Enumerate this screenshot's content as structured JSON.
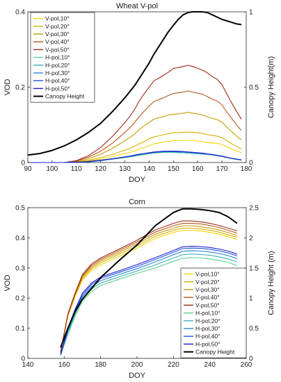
{
  "chart_data": [
    {
      "type": "line",
      "title": "Wheat V-pol",
      "xlabel": "DOY",
      "ylabel": "VOD",
      "y2label": "Canopy Height(m)",
      "xlim": [
        90,
        180
      ],
      "ylim": [
        0,
        0.4
      ],
      "y2lim": [
        0,
        1
      ],
      "xticks": [
        90,
        100,
        110,
        120,
        130,
        140,
        150,
        160,
        170,
        180
      ],
      "yticks": [
        0,
        0.2,
        0.4
      ],
      "y2ticks": [
        0,
        0.5,
        1
      ],
      "legend_position": "top-left",
      "grid": false,
      "x": [
        90,
        95,
        100,
        105,
        110,
        115,
        120,
        125,
        130,
        132,
        134,
        136,
        138,
        140,
        142,
        144,
        146,
        148,
        150,
        152,
        154,
        156,
        158,
        160,
        162,
        164,
        166,
        168,
        170,
        172,
        174,
        176,
        178
      ],
      "series": [
        {
          "name": "V-pol,10°",
          "color": "#f4d400",
          "axis": "left",
          "values": [
            0,
            0,
            0,
            0,
            0.001,
            0.004,
            0.009,
            0.016,
            0.024,
            0.027,
            0.031,
            0.036,
            0.04,
            0.045,
            0.05,
            0.052,
            0.054,
            0.056,
            0.058,
            0.058,
            0.059,
            0.059,
            0.058,
            0.057,
            0.055,
            0.053,
            0.052,
            0.051,
            0.048,
            0.042,
            0.036,
            0.031,
            0.026
          ]
        },
        {
          "name": "V-pol,20°",
          "color": "#d6ad00",
          "axis": "left",
          "values": [
            0,
            0,
            0,
            0,
            0.002,
            0.006,
            0.013,
            0.022,
            0.033,
            0.037,
            0.043,
            0.05,
            0.056,
            0.063,
            0.068,
            0.071,
            0.074,
            0.077,
            0.079,
            0.079,
            0.08,
            0.081,
            0.08,
            0.079,
            0.077,
            0.074,
            0.072,
            0.07,
            0.066,
            0.058,
            0.05,
            0.043,
            0.036
          ]
        },
        {
          "name": "V-pol,30°",
          "color": "#c49a00",
          "axis": "left",
          "values": [
            0,
            0,
            0,
            0,
            0.003,
            0.01,
            0.022,
            0.038,
            0.058,
            0.066,
            0.076,
            0.088,
            0.098,
            0.106,
            0.115,
            0.119,
            0.122,
            0.126,
            0.128,
            0.129,
            0.131,
            0.133,
            0.131,
            0.129,
            0.126,
            0.121,
            0.117,
            0.114,
            0.107,
            0.094,
            0.082,
            0.07,
            0.06
          ]
        },
        {
          "name": "V-pol,40°",
          "color": "#b8561c",
          "axis": "left",
          "values": [
            0,
            0,
            0,
            0,
            0.004,
            0.014,
            0.03,
            0.052,
            0.08,
            0.092,
            0.106,
            0.123,
            0.137,
            0.15,
            0.162,
            0.167,
            0.172,
            0.178,
            0.183,
            0.185,
            0.187,
            0.19,
            0.187,
            0.184,
            0.181,
            0.175,
            0.168,
            0.163,
            0.153,
            0.134,
            0.117,
            0.1,
            0.085
          ]
        },
        {
          "name": "V-pol,50°",
          "color": "#9c2a14",
          "axis": "left",
          "values": [
            0,
            0,
            0,
            0,
            0.005,
            0.018,
            0.04,
            0.07,
            0.106,
            0.122,
            0.141,
            0.164,
            0.183,
            0.2,
            0.217,
            0.224,
            0.232,
            0.24,
            0.25,
            0.252,
            0.255,
            0.258,
            0.255,
            0.25,
            0.245,
            0.238,
            0.228,
            0.221,
            0.207,
            0.182,
            0.158,
            0.136,
            0.115
          ]
        },
        {
          "name": "H-pol,10°",
          "color": "#5ccf8c",
          "axis": "left",
          "values": [
            0,
            0,
            0,
            0,
            0.001,
            0.002,
            0.005,
            0.009,
            0.013,
            0.015,
            0.017,
            0.019,
            0.021,
            0.023,
            0.025,
            0.026,
            0.027,
            0.027,
            0.027,
            0.026,
            0.026,
            0.025,
            0.024,
            0.023,
            0.022,
            0.021,
            0.02,
            0.018,
            0.016,
            0.013,
            0.01,
            0.008,
            0.006
          ]
        },
        {
          "name": "H-pol,20°",
          "color": "#3bb3b8",
          "axis": "left",
          "values": [
            0,
            0,
            0,
            0,
            0.001,
            0.002,
            0.005,
            0.009,
            0.014,
            0.016,
            0.018,
            0.02,
            0.022,
            0.024,
            0.026,
            0.027,
            0.028,
            0.028,
            0.028,
            0.027,
            0.027,
            0.026,
            0.025,
            0.024,
            0.023,
            0.022,
            0.02,
            0.018,
            0.016,
            0.013,
            0.011,
            0.009,
            0.007
          ]
        },
        {
          "name": "H-pol,30°",
          "color": "#2a86d6",
          "axis": "left",
          "values": [
            0,
            0,
            0,
            0,
            0.001,
            0.002,
            0.005,
            0.01,
            0.014,
            0.016,
            0.019,
            0.021,
            0.023,
            0.025,
            0.027,
            0.028,
            0.029,
            0.029,
            0.029,
            0.028,
            0.028,
            0.027,
            0.026,
            0.025,
            0.024,
            0.022,
            0.021,
            0.019,
            0.017,
            0.014,
            0.011,
            0.009,
            0.007
          ]
        },
        {
          "name": "H-pol,40°",
          "color": "#1f52d8",
          "axis": "left",
          "values": [
            0,
            0,
            0,
            0,
            0.001,
            0.002,
            0.006,
            0.01,
            0.015,
            0.017,
            0.019,
            0.022,
            0.024,
            0.026,
            0.027,
            0.028,
            0.029,
            0.03,
            0.03,
            0.029,
            0.029,
            0.028,
            0.027,
            0.026,
            0.024,
            0.023,
            0.021,
            0.019,
            0.017,
            0.014,
            0.011,
            0.009,
            0.007
          ]
        },
        {
          "name": "H-pol,50°",
          "color": "#1a1ad0",
          "axis": "left",
          "values": [
            0,
            0,
            0,
            0,
            0.001,
            0.003,
            0.006,
            0.01,
            0.015,
            0.017,
            0.02,
            0.022,
            0.024,
            0.026,
            0.028,
            0.029,
            0.03,
            0.03,
            0.03,
            0.03,
            0.029,
            0.028,
            0.027,
            0.026,
            0.025,
            0.023,
            0.021,
            0.019,
            0.017,
            0.014,
            0.011,
            0.009,
            0.007
          ]
        },
        {
          "name": "Canopy Height",
          "color": "#000000",
          "axis": "right",
          "values": [
            0.05,
            0.06,
            0.08,
            0.11,
            0.15,
            0.2,
            0.26,
            0.34,
            0.43,
            0.47,
            0.51,
            0.56,
            0.61,
            0.66,
            0.72,
            0.77,
            0.82,
            0.87,
            0.91,
            0.95,
            0.98,
            0.995,
            1.0,
            1.0,
            1.0,
            0.995,
            0.98,
            0.965,
            0.95,
            0.94,
            0.93,
            0.92,
            0.915
          ]
        }
      ]
    },
    {
      "type": "line",
      "title": "Corn",
      "xlabel": "DOY",
      "ylabel": "VOD",
      "y2label": "Canopy Height (m)",
      "xlim": [
        140,
        260
      ],
      "ylim": [
        0,
        0.5
      ],
      "y2lim": [
        0,
        2.5
      ],
      "xticks": [
        140,
        160,
        180,
        200,
        220,
        240,
        260
      ],
      "yticks": [
        0,
        0.1,
        0.2,
        0.3,
        0.4,
        0.5
      ],
      "y2ticks": [
        0,
        0.5,
        1,
        1.5,
        2,
        2.5
      ],
      "legend_position": "bottom-right",
      "grid": false,
      "x": [
        158,
        162,
        166,
        170,
        175,
        180,
        190,
        200,
        210,
        220,
        225,
        230,
        235,
        240,
        245,
        250,
        255
      ],
      "series": [
        {
          "name": "V-pol,10°",
          "color": "#f4d400",
          "axis": "left",
          "values": [
            0.02,
            0.14,
            0.205,
            0.26,
            0.292,
            0.31,
            0.338,
            0.366,
            0.398,
            0.418,
            0.425,
            0.425,
            0.423,
            0.418,
            0.412,
            0.404,
            0.395
          ]
        },
        {
          "name": "V-pol,20°",
          "color": "#d6ad00",
          "axis": "left",
          "values": [
            0.02,
            0.142,
            0.208,
            0.265,
            0.298,
            0.317,
            0.345,
            0.373,
            0.405,
            0.425,
            0.432,
            0.432,
            0.43,
            0.425,
            0.419,
            0.41,
            0.402
          ]
        },
        {
          "name": "V-pol,30°",
          "color": "#c49a00",
          "axis": "left",
          "values": [
            0.02,
            0.144,
            0.211,
            0.27,
            0.303,
            0.323,
            0.351,
            0.38,
            0.412,
            0.432,
            0.44,
            0.44,
            0.437,
            0.432,
            0.426,
            0.417,
            0.408
          ]
        },
        {
          "name": "V-pol,40°",
          "color": "#b8561c",
          "axis": "left",
          "values": [
            0.02,
            0.146,
            0.214,
            0.274,
            0.308,
            0.328,
            0.357,
            0.386,
            0.419,
            0.44,
            0.448,
            0.448,
            0.446,
            0.441,
            0.434,
            0.425,
            0.416
          ]
        },
        {
          "name": "V-pol,50°",
          "color": "#9c2a14",
          "axis": "left",
          "values": [
            0.02,
            0.148,
            0.217,
            0.278,
            0.313,
            0.333,
            0.362,
            0.392,
            0.426,
            0.448,
            0.456,
            0.456,
            0.453,
            0.448,
            0.441,
            0.432,
            0.423
          ]
        },
        {
          "name": "H-pol,10°",
          "color": "#5ccf8c",
          "axis": "left",
          "values": [
            0.01,
            0.08,
            0.14,
            0.19,
            0.222,
            0.242,
            0.262,
            0.282,
            0.3,
            0.322,
            0.332,
            0.334,
            0.333,
            0.33,
            0.325,
            0.318,
            0.308
          ]
        },
        {
          "name": "H-pol,20°",
          "color": "#3bb3b8",
          "axis": "left",
          "values": [
            0.011,
            0.085,
            0.147,
            0.197,
            0.23,
            0.25,
            0.27,
            0.29,
            0.31,
            0.333,
            0.344,
            0.346,
            0.345,
            0.342,
            0.337,
            0.33,
            0.32
          ]
        },
        {
          "name": "H-pol,30°",
          "color": "#2a86d6",
          "axis": "left",
          "values": [
            0.012,
            0.09,
            0.153,
            0.204,
            0.238,
            0.258,
            0.278,
            0.298,
            0.32,
            0.344,
            0.355,
            0.357,
            0.356,
            0.353,
            0.348,
            0.341,
            0.331
          ]
        },
        {
          "name": "H-pol,40°",
          "color": "#1f52d8",
          "axis": "left",
          "values": [
            0.013,
            0.095,
            0.158,
            0.21,
            0.245,
            0.265,
            0.285,
            0.305,
            0.328,
            0.352,
            0.364,
            0.366,
            0.365,
            0.362,
            0.357,
            0.35,
            0.34
          ]
        },
        {
          "name": "H-pol,50°",
          "color": "#1a1ad0",
          "axis": "left",
          "values": [
            0.014,
            0.1,
            0.163,
            0.216,
            0.25,
            0.27,
            0.29,
            0.311,
            0.334,
            0.358,
            0.37,
            0.372,
            0.371,
            0.368,
            0.363,
            0.356,
            0.346
          ]
        },
        {
          "name": "Canopy Height",
          "color": "#000000",
          "axis": "right",
          "values": [
            0.18,
            0.5,
            0.78,
            0.98,
            1.16,
            1.34,
            1.62,
            1.88,
            2.2,
            2.42,
            2.48,
            2.48,
            2.47,
            2.45,
            2.42,
            2.35,
            2.24
          ]
        }
      ]
    }
  ]
}
